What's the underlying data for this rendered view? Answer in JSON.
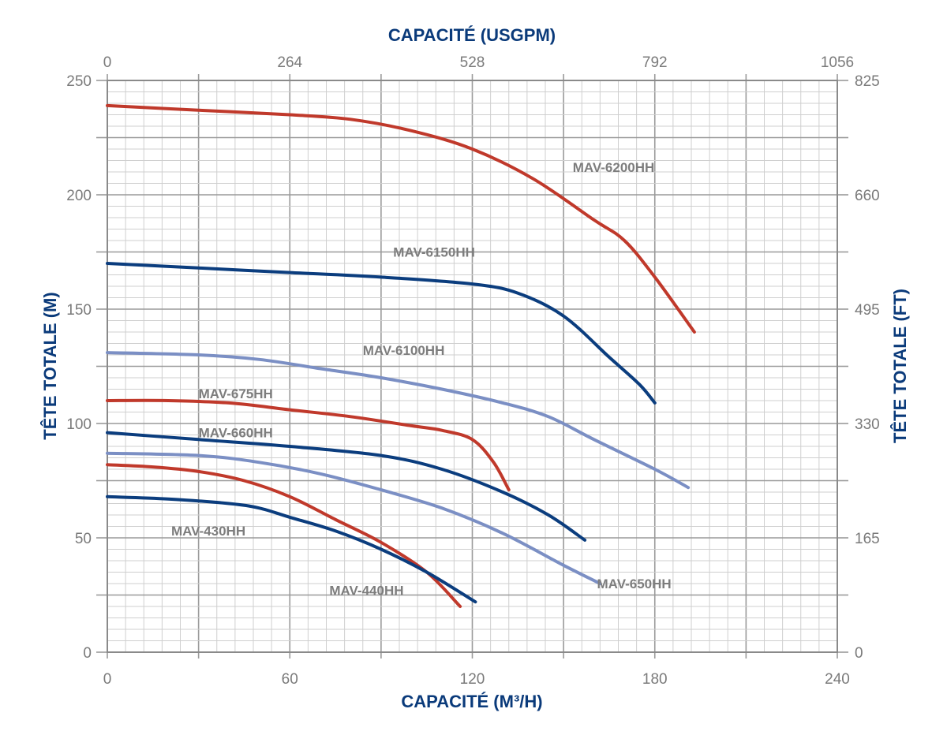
{
  "chart_data": {
    "type": "line",
    "title_top": "CAPACITÉ (USGPM)",
    "xlabel": "CAPACITÉ (M³/H)",
    "ylabel_left": "TÊTE TOTALE (M)",
    "ylabel_right": "TÊTE TOTALE (FT)",
    "xlim": [
      0,
      240
    ],
    "ylim": [
      0,
      250
    ],
    "x_ticks_bottom": [
      "0",
      "60",
      "120",
      "180",
      "240"
    ],
    "x_ticks_top": [
      "0",
      "264",
      "528",
      "792",
      "1056"
    ],
    "y_ticks_left": [
      "0",
      "50",
      "100",
      "150",
      "200",
      "250"
    ],
    "y_ticks_right": [
      "0",
      "165",
      "330",
      "495",
      "660",
      "825"
    ],
    "grid": true,
    "colors": {
      "red": "#c0392b",
      "navy": "#0b3d7e",
      "light": "#7b8fc4"
    },
    "series": [
      {
        "name": "MAV-6200HH",
        "color": "red",
        "label_at": [
          153,
          210
        ],
        "x": [
          0,
          30,
          60,
          80,
          100,
          120,
          140,
          160,
          170,
          180,
          193
        ],
        "y": [
          239,
          237,
          235,
          233,
          228,
          220,
          207,
          189,
          180,
          164,
          140
        ]
      },
      {
        "name": "MAV-6150HH",
        "color": "navy",
        "label_at": [
          94,
          173
        ],
        "x": [
          0,
          30,
          60,
          90,
          120,
          135,
          150,
          165,
          175,
          180
        ],
        "y": [
          170,
          168,
          166,
          164,
          161,
          157,
          147,
          129,
          117,
          109
        ]
      },
      {
        "name": "MAV-6100HH",
        "color": "light",
        "label_at": [
          84,
          130
        ],
        "x": [
          0,
          30,
          50,
          70,
          90,
          110,
          130,
          145,
          160,
          180,
          191
        ],
        "y": [
          131,
          130,
          128,
          124,
          120,
          115,
          109,
          103,
          93,
          80,
          72
        ]
      },
      {
        "name": "MAV-675HH",
        "color": "red",
        "label_at": [
          30,
          111
        ],
        "x": [
          0,
          20,
          40,
          60,
          80,
          100,
          110,
          120,
          127,
          132
        ],
        "y": [
          110,
          110,
          109,
          106,
          103,
          99,
          97,
          93,
          83,
          71
        ]
      },
      {
        "name": "MAV-660HH",
        "color": "navy",
        "label_at": [
          30,
          94
        ],
        "x": [
          0,
          30,
          60,
          90,
          110,
          130,
          145,
          157
        ],
        "y": [
          96,
          93,
          90,
          86,
          80,
          70,
          60,
          49
        ]
      },
      {
        "name": "MAV-650HH",
        "color": "light",
        "label_at": [
          161,
          28
        ],
        "x": [
          0,
          30,
          50,
          70,
          90,
          110,
          130,
          150,
          162
        ],
        "y": [
          87,
          86,
          83,
          78,
          71,
          63,
          52,
          38,
          30
        ]
      },
      {
        "name": "MAV-440HH",
        "color": "red",
        "label_at": [
          73,
          25
        ],
        "x": [
          0,
          15,
          30,
          45,
          60,
          75,
          90,
          105,
          116
        ],
        "y": [
          82,
          81,
          79,
          75,
          68,
          58,
          48,
          35,
          20
        ]
      },
      {
        "name": "MAV-430HH",
        "color": "navy",
        "label_at": [
          21,
          51
        ],
        "x": [
          0,
          20,
          40,
          50,
          60,
          75,
          90,
          105,
          121
        ],
        "y": [
          68,
          67,
          65,
          63,
          59,
          53,
          45,
          35,
          22
        ]
      }
    ]
  }
}
